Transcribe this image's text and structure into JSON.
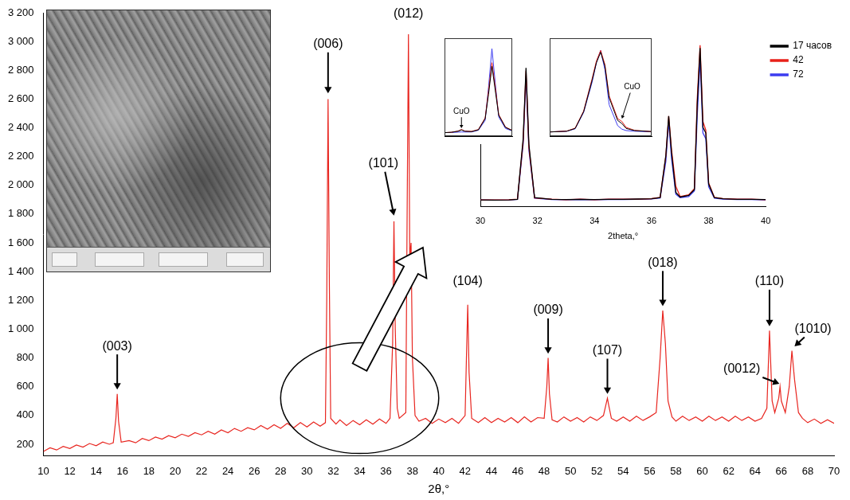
{
  "chart_data": [
    {
      "type": "line",
      "x_label": "2θ,°",
      "color": "#e8251f",
      "x": [
        10,
        10.5,
        11,
        11.5,
        12,
        12.5,
        13,
        13.5,
        14,
        14.5,
        15,
        15.3,
        15.5,
        15.6,
        15.7,
        15.9,
        16.5,
        17,
        17.5,
        18,
        18.5,
        19,
        19.5,
        20,
        20.5,
        21,
        21.5,
        22,
        22.5,
        23,
        23.5,
        24,
        24.5,
        25,
        25.5,
        26,
        26.5,
        27,
        27.5,
        28,
        28.5,
        29,
        29.5,
        30,
        30.5,
        31,
        31.4,
        31.5,
        31.6,
        31.7,
        31.8,
        32.2,
        32.5,
        33,
        33.5,
        34,
        34.5,
        35,
        35.5,
        36,
        36.3,
        36.5,
        36.6,
        36.7,
        36.85,
        37,
        37.5,
        37.6,
        37.7,
        37.8,
        37.9,
        38,
        38.2,
        38.5,
        39,
        39.5,
        40,
        40.5,
        41,
        41.5,
        42,
        42.1,
        42.2,
        42.3,
        42.5,
        43,
        43.5,
        44,
        44.5,
        45,
        45.5,
        46,
        46.5,
        47,
        47.5,
        48,
        48.2,
        48.3,
        48.4,
        48.6,
        49,
        49.5,
        50,
        50.5,
        51,
        51.5,
        52,
        52.5,
        52.7,
        52.8,
        52.9,
        53.1,
        53.5,
        54,
        54.5,
        55,
        55.5,
        56,
        56.5,
        56.8,
        57,
        57.2,
        57.4,
        57.7,
        58,
        58.5,
        59,
        59.5,
        60,
        60.5,
        61,
        61.5,
        62,
        62.5,
        63,
        63.5,
        64,
        64.5,
        64.9,
        65.1,
        65.3,
        65.5,
        65.8,
        65.9,
        66,
        66.3,
        66.6,
        66.8,
        67,
        67.3,
        67.6,
        68,
        68.5,
        69,
        69.5,
        70
      ],
      "values": [
        150,
        175,
        160,
        185,
        170,
        195,
        180,
        205,
        190,
        215,
        200,
        210,
        380,
        550,
        360,
        215,
        225,
        210,
        240,
        225,
        250,
        235,
        260,
        245,
        270,
        255,
        280,
        265,
        290,
        270,
        300,
        280,
        310,
        290,
        315,
        300,
        330,
        305,
        335,
        310,
        345,
        315,
        350,
        320,
        355,
        325,
        350,
        1200,
        2600,
        1300,
        380,
        340,
        370,
        330,
        365,
        335,
        370,
        340,
        375,
        345,
        380,
        900,
        1750,
        1000,
        450,
        380,
        420,
        1800,
        3050,
        1500,
        1600,
        800,
        400,
        360,
        380,
        345,
        375,
        350,
        380,
        345,
        400,
        800,
        1170,
        700,
        380,
        350,
        385,
        350,
        380,
        355,
        385,
        350,
        390,
        355,
        385,
        380,
        600,
        800,
        550,
        370,
        355,
        390,
        360,
        385,
        355,
        390,
        365,
        400,
        480,
        520,
        470,
        380,
        360,
        390,
        360,
        395,
        365,
        390,
        420,
        800,
        1130,
        900,
        500,
        390,
        360,
        395,
        365,
        390,
        360,
        395,
        365,
        390,
        360,
        395,
        365,
        390,
        360,
        380,
        450,
        990,
        500,
        420,
        520,
        600,
        500,
        420,
        600,
        850,
        650,
        420,
        380,
        350,
        375,
        345,
        370,
        345
      ],
      "xlim": [
        10,
        70
      ],
      "xticks": [
        10,
        12,
        14,
        16,
        18,
        20,
        22,
        24,
        26,
        28,
        30,
        32,
        34,
        36,
        38,
        40,
        42,
        44,
        46,
        48,
        50,
        52,
        54,
        56,
        58,
        60,
        62,
        64,
        66,
        68,
        70
      ],
      "ylim": [
        120,
        3200
      ],
      "yticks": [
        200,
        400,
        600,
        800,
        {
          "value": 1000,
          "label": "1 000"
        },
        {
          "value": 1200,
          "label": "1 200"
        },
        {
          "value": 1400,
          "label": "1 400"
        },
        {
          "value": 1600,
          "label": "1 600"
        },
        {
          "value": 1800,
          "label": "1 800"
        },
        {
          "value": 2000,
          "label": "2 000"
        },
        {
          "value": 2200,
          "label": "2 200"
        },
        {
          "value": 2400,
          "label": "2 400"
        },
        {
          "value": 2600,
          "label": "2 600"
        },
        {
          "value": 2800,
          "label": "2 800"
        },
        {
          "value": 3000,
          "label": "3 000"
        },
        {
          "value": 3200,
          "label": "3 200"
        }
      ],
      "grid": false,
      "annotations": [
        {
          "text": "(003)",
          "x": 15.6,
          "y": 580,
          "label_x": 15.6,
          "label_y": 880
        },
        {
          "text": "(006)",
          "x": 31.6,
          "y": 2640,
          "label_x": 31.6,
          "label_y": 2980
        },
        {
          "text": "(012)",
          "x": 37.7,
          "y": 3190
        },
        {
          "text": "(101)",
          "x": 36.6,
          "y": 1790,
          "label_x": 35.8,
          "label_y": 2150
        },
        {
          "text": "(104)",
          "x": 42.2,
          "y": 1330
        },
        {
          "text": "(009)",
          "x": 48.3,
          "y": 830,
          "label_x": 48.3,
          "label_y": 1130
        },
        {
          "text": "(107)",
          "x": 52.8,
          "y": 550,
          "label_x": 52.8,
          "label_y": 850
        },
        {
          "text": "(018)",
          "x": 57.0,
          "y": 1160,
          "label_x": 57.0,
          "label_y": 1460
        },
        {
          "text": "(110)",
          "x": 65.1,
          "y": 1020,
          "label_x": 65.1,
          "label_y": 1330
        },
        {
          "text": "(0012)",
          "x": 65.85,
          "y": 620,
          "label_x": 63.0,
          "label_y": 720
        },
        {
          "text": "(1010)",
          "x": 67.0,
          "y": 880,
          "label_x": 68.4,
          "label_y": 1000
        }
      ]
    },
    {
      "type": "line",
      "x_label": "2theta,°",
      "x": [
        30,
        30.5,
        31,
        31.3,
        31.5,
        31.6,
        31.7,
        31.9,
        32.5,
        33,
        33.5,
        34,
        34.5,
        35,
        35.5,
        36,
        36.3,
        36.5,
        36.6,
        36.7,
        36.85,
        37,
        37.3,
        37.5,
        37.6,
        37.7,
        37.8,
        37.9,
        38,
        38.2,
        38.5,
        39,
        39.5,
        40
      ],
      "series": [
        {
          "name": "17 часов",
          "color": "#000000",
          "values": [
            320,
            315,
            320,
            330,
            1400,
            2650,
            1300,
            360,
            330,
            325,
            330,
            325,
            330,
            330,
            335,
            340,
            360,
            1100,
            1800,
            1150,
            450,
            370,
            400,
            500,
            2000,
            3000,
            1600,
            1500,
            600,
            360,
            340,
            330,
            330,
            325
          ]
        },
        {
          "name": "42",
          "color": "#e8201a",
          "values": [
            320,
            318,
            322,
            332,
            1350,
            2600,
            1250,
            355,
            332,
            322,
            332,
            322,
            332,
            332,
            332,
            342,
            365,
            1100,
            1800,
            1200,
            560,
            380,
            410,
            520,
            2100,
            3050,
            1700,
            1550,
            620,
            365,
            345,
            332,
            332,
            322
          ]
        },
        {
          "name": "72",
          "color": "#3c3cf0",
          "values": [
            318,
            316,
            318,
            328,
            1300,
            2500,
            1200,
            350,
            328,
            322,
            328,
            322,
            328,
            328,
            330,
            338,
            355,
            1000,
            1700,
            1050,
            420,
            360,
            380,
            480,
            1800,
            2800,
            1500,
            1400,
            550,
            350,
            335,
            328,
            328,
            320
          ]
        }
      ],
      "xlim": [
        30,
        40
      ],
      "xticks": [
        30,
        32,
        34,
        36,
        38,
        40
      ],
      "ylim": [
        200,
        3200
      ],
      "tick_labels": "x",
      "legend": "right",
      "grid": false
    },
    {
      "type": "line",
      "x": [
        37.0,
        37.1,
        37.2,
        37.25,
        37.3,
        37.4,
        37.5,
        37.6,
        37.65,
        37.7,
        37.75,
        37.8,
        37.9,
        38.0
      ],
      "series": [
        {
          "color": "#000000",
          "values": [
            300,
            310,
            340,
            380,
            340,
            330,
            380,
            700,
            1400,
            2200,
            1500,
            800,
            450,
            360
          ]
        },
        {
          "color": "#e8201a",
          "values": [
            300,
            310,
            345,
            390,
            345,
            335,
            390,
            720,
            1500,
            2300,
            1600,
            820,
            460,
            365
          ]
        },
        {
          "color": "#3c3cf0",
          "values": [
            300,
            305,
            315,
            320,
            318,
            320,
            370,
            650,
            1600,
            2700,
            1700,
            750,
            420,
            350
          ]
        }
      ],
      "xlim": [
        37.0,
        38.0
      ],
      "ylim": [
        200,
        3000
      ],
      "tick_labels": false,
      "grid": false,
      "annotations": [
        {
          "text": "CuO",
          "x": 37.25,
          "y": 430,
          "label_x": 37.25,
          "label_y": 900
        }
      ]
    },
    {
      "type": "line",
      "x": [
        36.0,
        36.2,
        36.3,
        36.4,
        36.5,
        36.55,
        36.6,
        36.65,
        36.7,
        36.8,
        36.85,
        36.9,
        37.0,
        37.2
      ],
      "series": [
        {
          "color": "#000000",
          "values": [
            320,
            340,
            420,
            900,
            1800,
            2300,
            2600,
            2200,
            1300,
            650,
            560,
            420,
            360,
            330
          ]
        },
        {
          "color": "#e8201a",
          "values": [
            320,
            345,
            430,
            920,
            1850,
            2350,
            2650,
            2250,
            1350,
            700,
            620,
            450,
            365,
            330
          ]
        },
        {
          "color": "#3c3cf0",
          "values": [
            320,
            340,
            410,
            880,
            1750,
            2300,
            2650,
            2100,
            1100,
            500,
            400,
            360,
            340,
            325
          ]
        }
      ],
      "xlim": [
        36.0,
        37.2
      ],
      "ylim": [
        200,
        3000
      ],
      "tick_labels": false,
      "grid": false,
      "annotations": [
        {
          "text": "CuO",
          "x": 36.85,
          "y": 700,
          "label_x": 36.97,
          "label_y": 1600
        }
      ]
    }
  ]
}
